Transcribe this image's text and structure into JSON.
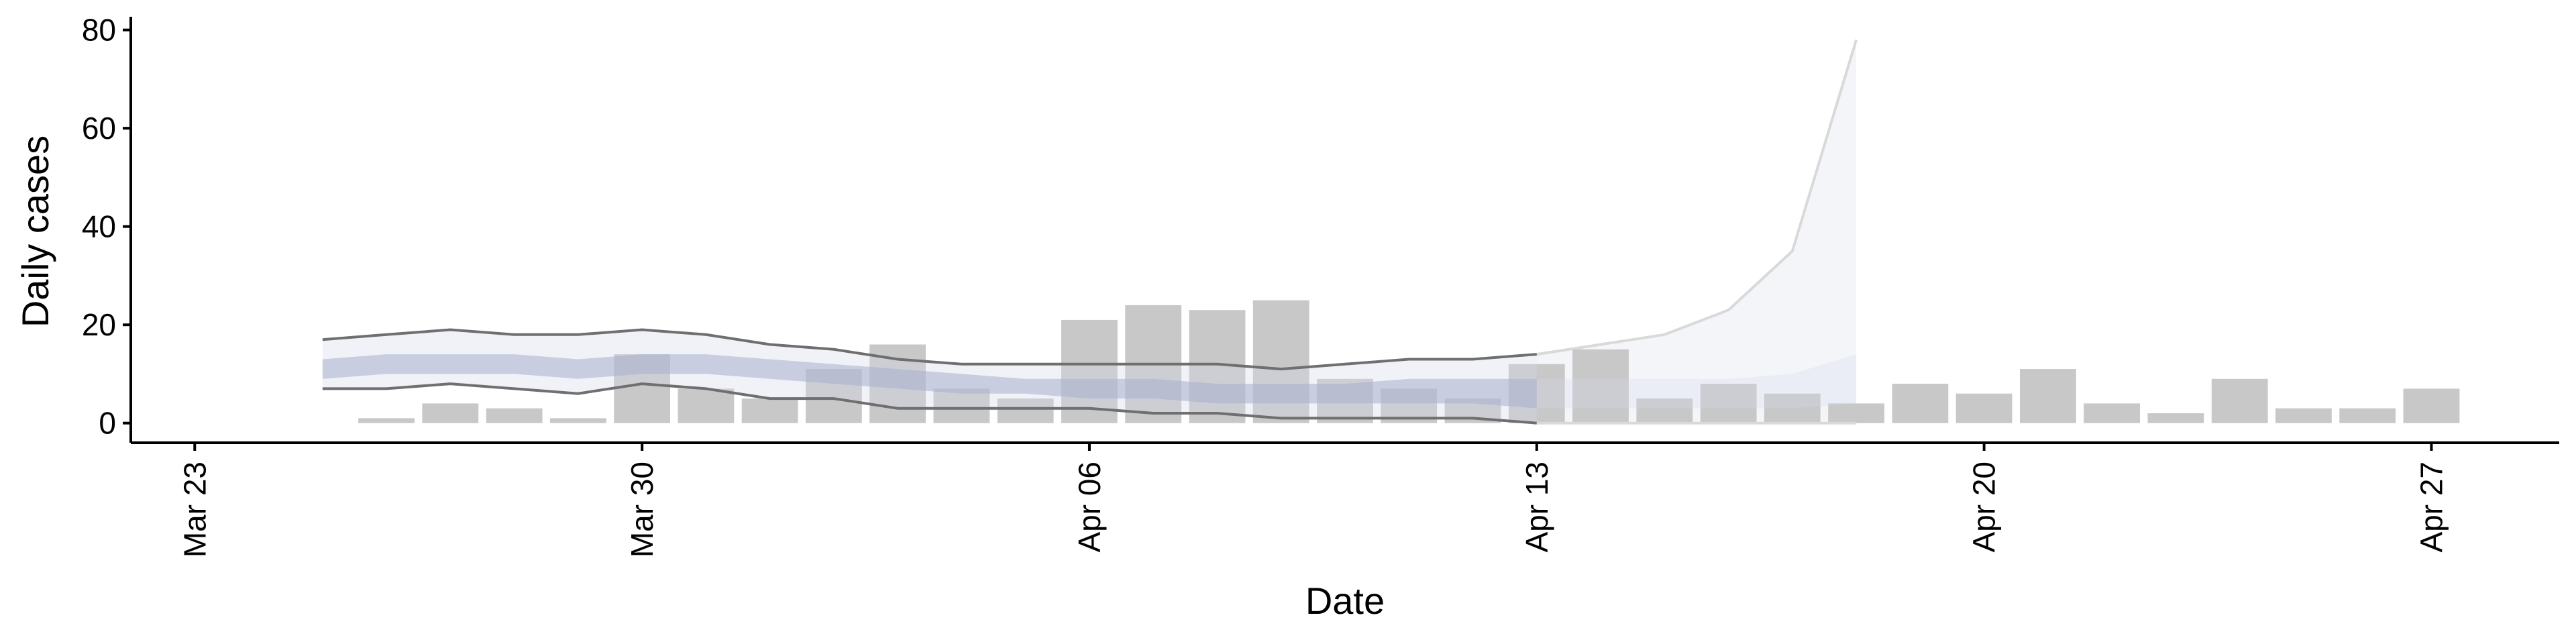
{
  "chart_data": {
    "type": "bar",
    "title": "",
    "xlabel": "Date",
    "ylabel": "Daily cases",
    "ylim": [
      -4,
      82
    ],
    "y_ticks": [
      0,
      20,
      40,
      60,
      80
    ],
    "xlim": [
      "2020-03-22",
      "2020-04-29"
    ],
    "x_ticks": [
      {
        "date": "2020-03-23",
        "label": "Mar 23"
      },
      {
        "date": "2020-03-30",
        "label": "Mar 30"
      },
      {
        "date": "2020-04-06",
        "label": "Apr 06"
      },
      {
        "date": "2020-04-13",
        "label": "Apr 13"
      },
      {
        "date": "2020-04-20",
        "label": "Apr 20"
      },
      {
        "date": "2020-04-27",
        "label": "Apr 27"
      }
    ],
    "grid": false,
    "colors": {
      "bars": "#c8c8c8",
      "band_inner": "#a7b0cc",
      "band_outer": "#d5dbea",
      "bound_lines": "#6f6f6f",
      "forecast_band": "#f4f5f9",
      "forecast_line": "#d9d9d9",
      "axes": "#000000"
    },
    "bars": {
      "dates": [
        "2020-03-26",
        "2020-03-27",
        "2020-03-28",
        "2020-03-29",
        "2020-03-30",
        "2020-03-31",
        "2020-04-01",
        "2020-04-02",
        "2020-04-03",
        "2020-04-04",
        "2020-04-05",
        "2020-04-06",
        "2020-04-07",
        "2020-04-08",
        "2020-04-09",
        "2020-04-10",
        "2020-04-11",
        "2020-04-12",
        "2020-04-13",
        "2020-04-14",
        "2020-04-15",
        "2020-04-16",
        "2020-04-17",
        "2020-04-18",
        "2020-04-19",
        "2020-04-20",
        "2020-04-21",
        "2020-04-22",
        "2020-04-23",
        "2020-04-24",
        "2020-04-25",
        "2020-04-26",
        "2020-04-27"
      ],
      "values": [
        1,
        4,
        3,
        1,
        14,
        7,
        5,
        11,
        16,
        7,
        5,
        21,
        24,
        23,
        25,
        9,
        7,
        5,
        12,
        15,
        5,
        8,
        6,
        4,
        8,
        6,
        11,
        4,
        2,
        9,
        3,
        3,
        7
      ]
    },
    "estimate_bands": {
      "dates": [
        "2020-03-25",
        "2020-03-26",
        "2020-03-27",
        "2020-03-28",
        "2020-03-29",
        "2020-03-30",
        "2020-03-31",
        "2020-04-01",
        "2020-04-02",
        "2020-04-03",
        "2020-04-04",
        "2020-04-05",
        "2020-04-06",
        "2020-04-07",
        "2020-04-08",
        "2020-04-09",
        "2020-04-10",
        "2020-04-11",
        "2020-04-12",
        "2020-04-13",
        "2020-04-14",
        "2020-04-15",
        "2020-04-16",
        "2020-04-17",
        "2020-04-18"
      ],
      "outer_lower": [
        7,
        7,
        8,
        7,
        6,
        8,
        7,
        5,
        5,
        3,
        3,
        3,
        3,
        2,
        2,
        1,
        1,
        1,
        1,
        0,
        0,
        0,
        0,
        0,
        0
      ],
      "outer_upper": [
        17,
        18,
        19,
        18,
        18,
        19,
        18,
        16,
        15,
        13,
        12,
        12,
        12,
        12,
        12,
        11,
        12,
        13,
        13,
        14,
        16,
        18,
        23,
        35,
        78
      ],
      "inner_lower": [
        9,
        10,
        10,
        10,
        9,
        10,
        10,
        9,
        8,
        7,
        6,
        6,
        5,
        5,
        4,
        4,
        4,
        4,
        4,
        3,
        3,
        3,
        3,
        3,
        4
      ],
      "inner_upper": [
        13,
        14,
        14,
        14,
        13,
        14,
        14,
        13,
        12,
        11,
        10,
        9,
        9,
        9,
        8,
        8,
        8,
        9,
        9,
        9,
        9,
        9,
        9,
        10,
        14
      ],
      "observed_until": "2020-04-13",
      "forecast_from": "2020-04-13"
    }
  }
}
